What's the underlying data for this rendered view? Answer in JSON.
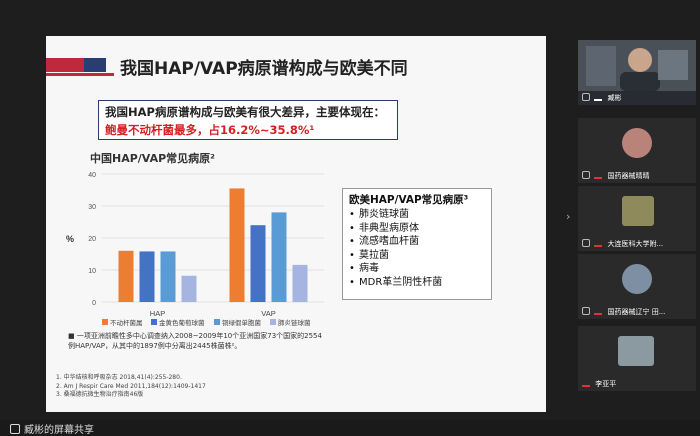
{
  "slide": {
    "title": "我国HAP/VAP病原谱构成与欧美不同",
    "summary_line1": "我国HAP病原谱构成与欧美有很大差异，主要体现在：",
    "summary_line2": "鲍曼不动杆菌最多，占16.2%~35.8%¹",
    "chart_title": "中国HAP/VAP常见病原²",
    "eu_title": "欧美HAP/VAP常见病原³",
    "eu_items": [
      "肺炎链球菌",
      "非典型病原体",
      "流感嗜血杆菌",
      "莫拉菌",
      "病毒",
      "MDR革兰阴性杆菌"
    ],
    "study_note": "一项亚洲前瞻性多中心调查纳入2008~2009年10个亚洲国家73个国家的2554例HAP/VAP，从其中的1897例中分离出2445株菌株²。",
    "references": [
      "1.   中华结核和呼吸杂志 2018,41(4):255-280.",
      "2.   Am J Respir Care Med 2011,184(12):1409-1417",
      "3.   桑福德抗微生物治疗指南46版"
    ]
  },
  "chart_data": {
    "type": "bar",
    "title": "中国HAP/VAP常见病原²",
    "categories": [
      "HAP",
      "VAP"
    ],
    "ylabel": "%",
    "ylim": [
      0,
      40
    ],
    "yticks": [
      0,
      10,
      20,
      30,
      40
    ],
    "grid": true,
    "legend_position": "bottom",
    "series": [
      {
        "name": "不动杆菌属",
        "color": "#ed7d31",
        "values": [
          16,
          35.5
        ]
      },
      {
        "name": "金黄色葡萄球菌",
        "color": "#4472c4",
        "values": [
          15.8,
          24
        ]
      },
      {
        "name": "铜绿假单胞菌",
        "color": "#5b9bd5",
        "values": [
          15.8,
          28
        ]
      },
      {
        "name": "肺炎链球菌",
        "color": "#a5b4e0",
        "values": [
          8.2,
          11.6
        ]
      }
    ]
  },
  "participants": [
    {
      "name": "臧彬",
      "color": "#6d7b8a"
    },
    {
      "name": "国药器械晴晴",
      "color": "#b9837a"
    },
    {
      "name": "大连医科大学附...",
      "color": "#8f8a5c"
    },
    {
      "name": "国药器械辽宁 田...",
      "color": "#7d8fa3"
    },
    {
      "name": "李亚平",
      "color": "#8b9aa0"
    }
  ],
  "share_status": "臧彬的屏幕共享"
}
